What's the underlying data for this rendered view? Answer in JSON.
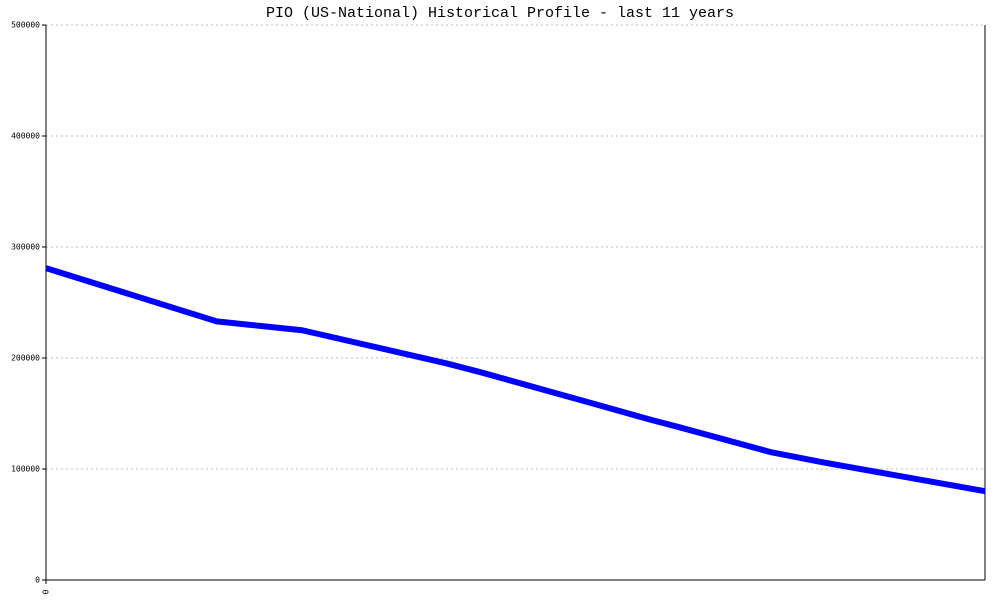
{
  "chart_data": {
    "type": "line",
    "title": "PIO (US-National) Historical Profile - last 11 years",
    "x": [
      0,
      2.0,
      3.0,
      4.7,
      5.1,
      6.5,
      7.1,
      7.4,
      8.5,
      9.1,
      11
    ],
    "series": [
      {
        "color": "#0000ff",
        "values": [
          281000,
          233000,
          225000,
          195000,
          187000,
          157000,
          144000,
          138000,
          115000,
          106000,
          80000
        ]
      }
    ],
    "xlim": [
      0,
      11
    ],
    "xticks": [
      0
    ],
    "ylim": [
      0,
      500000
    ],
    "yticks": [
      0,
      100000,
      200000,
      300000,
      400000,
      500000
    ],
    "grid": true
  }
}
